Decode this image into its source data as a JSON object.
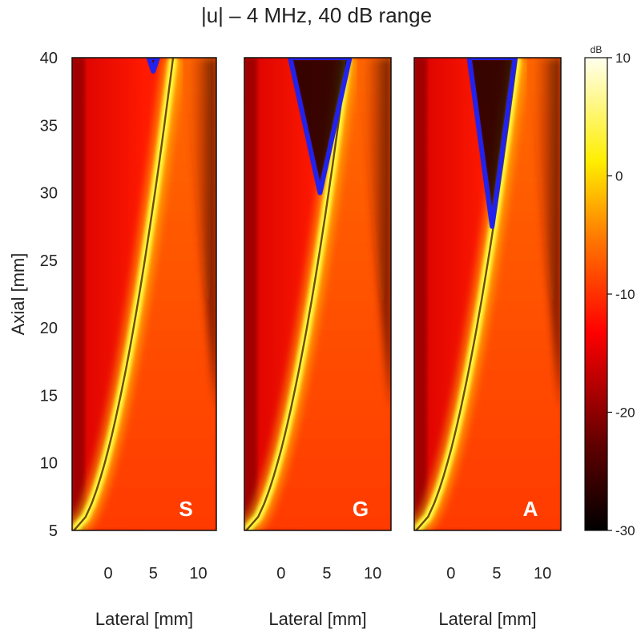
{
  "figure": {
    "title": "|u| – 4 MHz, 40 dB range"
  },
  "chart_data": [
    {
      "type": "heatmap",
      "panel_label": "S",
      "xlabel": "Lateral [mm]",
      "ylabel": "Axial [mm]",
      "xlim": [
        -4,
        12
      ],
      "ylim": [
        5,
        40
      ],
      "x_ticks": [
        0,
        5,
        10
      ],
      "y_ticks": [
        5,
        10,
        15,
        20,
        25,
        30,
        35,
        40
      ],
      "overlay_contour": {
        "apex_axial": 39,
        "base_lateral_min": 4.5,
        "base_lateral_max": 5.5,
        "color": "#2222ee"
      }
    },
    {
      "type": "heatmap",
      "panel_label": "G",
      "xlabel": "Lateral [mm]",
      "xlim": [
        -4,
        12
      ],
      "ylim": [
        5,
        40
      ],
      "x_ticks": [
        0,
        5,
        10
      ],
      "overlay_contour": {
        "apex_axial": 30,
        "base_lateral_min": 1,
        "base_lateral_max": 7.5,
        "color": "#2222ee"
      }
    },
    {
      "type": "heatmap",
      "panel_label": "A",
      "xlabel": "Lateral [mm]",
      "xlim": [
        -4,
        12
      ],
      "ylim": [
        5,
        40
      ],
      "x_ticks": [
        0,
        5,
        10
      ],
      "overlay_contour": {
        "apex_axial": 27.5,
        "base_lateral_min": 2,
        "base_lateral_max": 7,
        "color": "#2222ee"
      }
    }
  ],
  "colorbar": {
    "range": [
      -30,
      10
    ],
    "ticks": [
      10,
      0,
      -10,
      -20,
      -30
    ],
    "unit_label": "dB",
    "colormap": [
      "#000000",
      "#ff0000",
      "#ffff00",
      "#ffffff"
    ]
  }
}
